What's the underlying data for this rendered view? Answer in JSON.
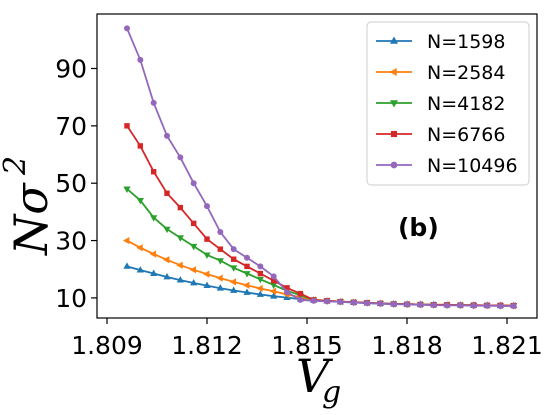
{
  "chart_data": {
    "type": "line",
    "xlabel_main": "V",
    "xlabel_sub": "g",
    "ylabel_main": "Nσ",
    "ylabel_sup": "2",
    "annotation": "(b)",
    "xlim": [
      1.8087,
      1.8219
    ],
    "ylim": [
      3.0,
      109.0
    ],
    "xticks": [
      1.809,
      1.812,
      1.815,
      1.818,
      1.821
    ],
    "xtick_labels": [
      "1.809",
      "1.812",
      "1.815",
      "1.818",
      "1.821"
    ],
    "yticks": [
      10,
      30,
      50,
      70,
      90
    ],
    "ytick_labels": [
      "10",
      "30",
      "50",
      "70",
      "90"
    ],
    "legend_position": "upper right",
    "grid": false,
    "x": [
      1.8096,
      1.81,
      1.8104,
      1.8108,
      1.8112,
      1.8116,
      1.812,
      1.8124,
      1.8128,
      1.8132,
      1.8136,
      1.814,
      1.8144,
      1.8148,
      1.8152,
      1.8156,
      1.816,
      1.8164,
      1.8168,
      1.8172,
      1.8176,
      1.818,
      1.8184,
      1.8188,
      1.8192,
      1.8196,
      1.82,
      1.8204,
      1.8208,
      1.8212
    ],
    "series": [
      {
        "name": "N=1598",
        "color": "#1f77b4",
        "marker": "triangle-up",
        "values": [
          21.0,
          19.7,
          18.5,
          17.3,
          16.2,
          15.2,
          14.3,
          13.4,
          12.6,
          11.9,
          11.2,
          10.6,
          10.1,
          9.6,
          9.2,
          8.9,
          8.6,
          8.4,
          8.2,
          8.0,
          7.9,
          7.8,
          7.7,
          7.6,
          7.5,
          7.5,
          7.4,
          7.4,
          7.3,
          7.3
        ]
      },
      {
        "name": "N=2584",
        "color": "#ff7f0e",
        "marker": "triangle-left",
        "values": [
          30.0,
          27.5,
          25.3,
          23.3,
          21.4,
          19.8,
          18.3,
          16.9,
          15.6,
          14.4,
          13.3,
          12.3,
          11.2,
          10.3,
          9.3,
          9.0,
          8.7,
          8.5,
          8.3,
          8.1,
          7.9,
          7.8,
          7.7,
          7.6,
          7.6,
          7.5,
          7.5,
          7.4,
          7.4,
          7.3
        ]
      },
      {
        "name": "N=4182",
        "color": "#2ca02c",
        "marker": "triangle-down",
        "values": [
          48.0,
          44.0,
          38.0,
          34.0,
          31.0,
          28.0,
          25.0,
          23.0,
          20.5,
          18.5,
          16.5,
          14.5,
          12.5,
          11.0,
          9.3,
          9.0,
          8.7,
          8.5,
          8.3,
          8.1,
          7.9,
          7.8,
          7.7,
          7.6,
          7.5,
          7.5,
          7.4,
          7.4,
          7.3,
          7.3
        ]
      },
      {
        "name": "N=6766",
        "color": "#d62728",
        "marker": "square",
        "values": [
          70.0,
          63.0,
          54.0,
          46.5,
          41.5,
          36.0,
          30.5,
          27.0,
          23.5,
          21.0,
          18.5,
          16.0,
          13.5,
          11.5,
          9.3,
          9.0,
          8.7,
          8.5,
          8.3,
          8.1,
          7.9,
          7.8,
          7.7,
          7.6,
          7.6,
          7.5,
          7.5,
          7.4,
          7.4,
          7.3
        ]
      },
      {
        "name": "N=10496",
        "color": "#9467bd",
        "marker": "circle",
        "values": [
          104.0,
          93.0,
          78.0,
          66.5,
          59.0,
          50.0,
          42.0,
          33.0,
          27.0,
          24.0,
          21.0,
          17.5,
          12.0,
          9.3,
          9.0,
          8.8,
          8.6,
          8.4,
          8.2,
          8.0,
          7.8,
          7.7,
          7.6,
          7.5,
          7.4,
          7.4,
          7.3,
          7.3,
          7.2,
          7.2
        ]
      }
    ]
  }
}
